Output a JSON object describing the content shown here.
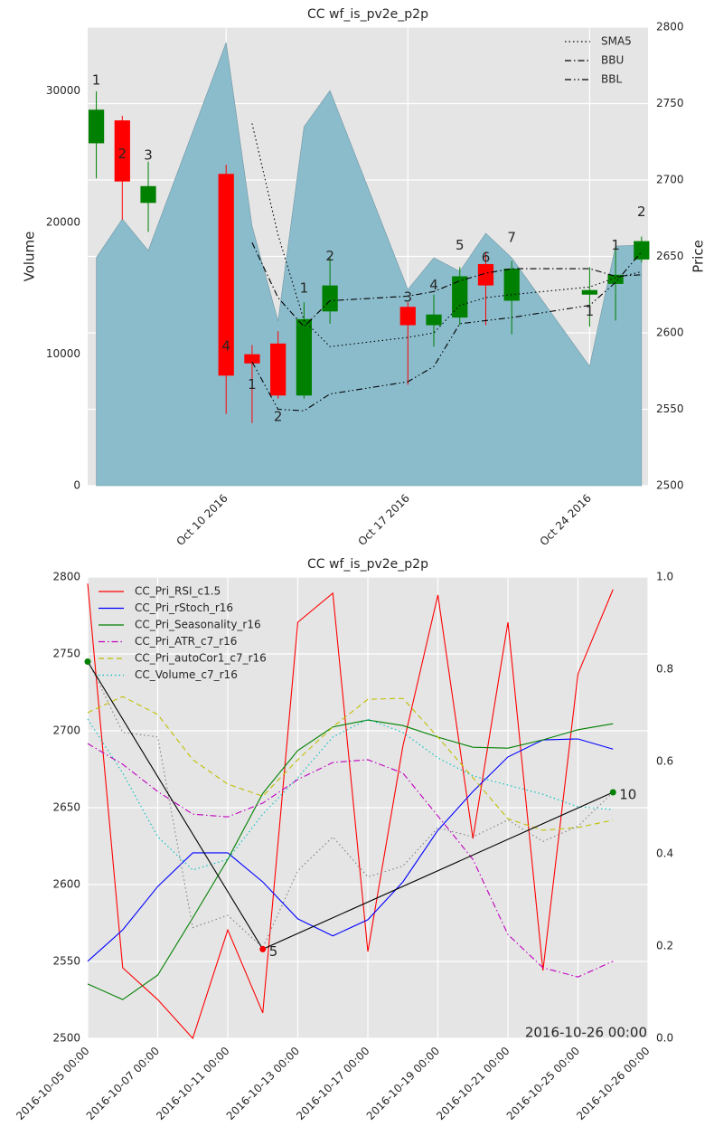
{
  "chart_data": [
    {
      "type": "candlestick",
      "title": "CC wf_is_pv2e_p2p",
      "ylabel": "Volume",
      "y2label": "Price",
      "x": [
        "2016-10-05",
        "2016-10-06",
        "2016-10-07",
        "2016-10-10",
        "2016-10-11",
        "2016-10-12",
        "2016-10-13",
        "2016-10-14",
        "2016-10-17",
        "2016-10-18",
        "2016-10-19",
        "2016-10-20",
        "2016-10-21",
        "2016-10-24",
        "2016-10-25",
        "2016-10-26"
      ],
      "open": [
        2724,
        2739,
        2685,
        2704,
        2586,
        2593,
        2559,
        2614,
        2617,
        2605,
        2610,
        2645,
        2621,
        2625,
        2632,
        2648
      ],
      "high": [
        2758,
        2742,
        2712,
        2710,
        2592,
        2601,
        2620,
        2649,
        2620,
        2625,
        2643,
        2653,
        2647,
        2643,
        2656,
        2663
      ],
      "low": [
        2701,
        2674,
        2666,
        2547,
        2541,
        2557,
        2557,
        2606,
        2566,
        2591,
        2605,
        2605,
        2599,
        2604,
        2608,
        2646
      ],
      "close": [
        2746,
        2699,
        2696,
        2572,
        2580,
        2559,
        2609,
        2631,
        2605,
        2612,
        2637,
        2631,
        2642,
        2628,
        2638,
        2660
      ],
      "up_color": "#008000",
      "down_color": "#ff0000",
      "volume": {
        "values": [
          17320,
          20270,
          17870,
          33680,
          19720,
          12510,
          27280,
          30030,
          14910,
          17320,
          16290,
          19180,
          17320,
          9070,
          18210,
          18280
        ],
        "color": "#8bbccc"
      },
      "series": [
        {
          "name": "SMA5",
          "color": "#000000",
          "style": "dotted",
          "axis": "y2",
          "values": [
            null,
            null,
            null,
            null,
            2737,
            2664,
            2608,
            2591,
            2597,
            2600,
            2618,
            2623,
            2625,
            2630,
            2636,
            2640
          ]
        },
        {
          "name": "BBU",
          "color": "#000000",
          "style": "dashdot",
          "axis": "y2",
          "values": [
            null,
            null,
            null,
            null,
            2659,
            2623,
            2604,
            2621,
            2624,
            2627,
            2634,
            2639,
            2642,
            2642,
            2637,
            2638
          ]
        },
        {
          "name": "BBL",
          "color": "#000000",
          "style": "dashdotdot",
          "axis": "y2",
          "values": [
            null,
            null,
            null,
            null,
            2581,
            2550,
            2549,
            2560,
            2568,
            2578,
            2606,
            2608,
            2610,
            2618,
            2633,
            2653
          ]
        }
      ],
      "annotations": [
        {
          "text": "1",
          "x": "2016-10-05",
          "y": 2765
        },
        {
          "text": "2",
          "x": "2016-10-06",
          "y": 2717
        },
        {
          "text": "3",
          "x": "2016-10-07",
          "y": 2716
        },
        {
          "text": "4",
          "x": "2016-10-10",
          "y": 2591
        },
        {
          "text": "1",
          "x": "2016-10-11",
          "y": 2566
        },
        {
          "text": "2",
          "x": "2016-10-12",
          "y": 2545
        },
        {
          "text": "1",
          "x": "2016-10-13",
          "y": 2629
        },
        {
          "text": "2",
          "x": "2016-10-14",
          "y": 2650
        },
        {
          "text": "3",
          "x": "2016-10-17",
          "y": 2623
        },
        {
          "text": "4",
          "x": "2016-10-18",
          "y": 2631
        },
        {
          "text": "5",
          "x": "2016-10-19",
          "y": 2657
        },
        {
          "text": "6",
          "x": "2016-10-20",
          "y": 2649
        },
        {
          "text": "7",
          "x": "2016-10-21",
          "y": 2662
        },
        {
          "text": "1",
          "x": "2016-10-24",
          "y": 2614
        },
        {
          "text": "1",
          "x": "2016-10-25",
          "y": 2657
        },
        {
          "text": "2",
          "x": "2016-10-26",
          "y": 2679
        }
      ],
      "annotation_axis": "y2",
      "xlim": [
        "2016-10-04T16:00",
        "2016-10-26T06:00"
      ],
      "xticks": [
        {
          "value": "2016-10-10",
          "label": "Oct 10 2016"
        },
        {
          "value": "2016-10-17",
          "label": "Oct 17 2016"
        },
        {
          "value": "2016-10-24",
          "label": "Oct 24 2016"
        }
      ],
      "ylim": [
        0,
        34850
      ],
      "yticks": [
        0,
        10000,
        20000,
        30000
      ],
      "y2lim": [
        2500,
        2800
      ],
      "y2ticks": [
        2500,
        2550,
        2600,
        2650,
        2700,
        2750,
        2800
      ],
      "grid": "y2",
      "legend": "upper right"
    },
    {
      "type": "line",
      "title": "CC wf_is_pv2e_p2p",
      "x": [
        0,
        1,
        2,
        3,
        4,
        5,
        6,
        7,
        8,
        9,
        10,
        11,
        12,
        13,
        14,
        15
      ],
      "series": [
        {
          "name": "CC_Pri_RSI_c1.5",
          "color": "#ff0000",
          "style": "solid",
          "axis": "y2",
          "values": [
            0.986,
            0.153,
            0.084,
            0.0,
            0.235,
            0.055,
            0.902,
            0.965,
            0.188,
            0.633,
            0.961,
            0.433,
            0.902,
            0.147,
            0.79,
            0.973
          ]
        },
        {
          "name": "CC_Pri_rStoch_r16",
          "color": "#0000ff",
          "style": "solid",
          "axis": "y2",
          "values": [
            0.167,
            0.235,
            0.329,
            0.402,
            0.402,
            0.339,
            0.259,
            0.222,
            0.257,
            0.339,
            0.451,
            0.535,
            0.61,
            0.647,
            0.649,
            0.627
          ]
        },
        {
          "name": "CC_Pri_Seasonality_r16",
          "color": "#008000",
          "style": "solid",
          "axis": "y2",
          "values": [
            0.118,
            0.084,
            0.137,
            0.261,
            0.388,
            0.531,
            0.624,
            0.675,
            0.69,
            0.678,
            0.653,
            0.631,
            0.629,
            0.647,
            0.669,
            0.682
          ]
        },
        {
          "name": "CC_Pri_ATR_c7_r16",
          "color": "#bf00bf",
          "style": "dashdot",
          "axis": "y2",
          "values": [
            0.639,
            0.594,
            0.535,
            0.486,
            0.48,
            0.51,
            0.561,
            0.598,
            0.604,
            0.575,
            0.482,
            0.388,
            0.225,
            0.153,
            0.133,
            0.167
          ]
        },
        {
          "name": "CC_Pri_autoCor1_c7_r16",
          "color": "#bfbf00",
          "style": "dashed",
          "axis": "y2",
          "values": [
            0.706,
            0.741,
            0.702,
            0.604,
            0.551,
            0.525,
            0.604,
            0.675,
            0.735,
            0.737,
            0.653,
            0.565,
            0.476,
            0.451,
            0.457,
            0.473
          ]
        },
        {
          "name": "CC_Volume_c7_r16",
          "color": "#00bfbf",
          "style": "dotted",
          "axis": "y2",
          "values": [
            0.692,
            0.575,
            0.437,
            0.365,
            0.388,
            0.486,
            0.565,
            0.653,
            0.692,
            0.663,
            0.608,
            0.569,
            0.549,
            0.529,
            0.502,
            0.496
          ]
        },
        {
          "color": "#808080",
          "style": "dotted",
          "axis": "y",
          "values": [
            2746,
            2699,
            2696,
            2572,
            2580,
            2559,
            2609,
            2631,
            2605,
            2612,
            2637,
            2631,
            2642,
            2628,
            2638,
            2660
          ]
        },
        {
          "color": "#000000",
          "style": "solid",
          "axis": "y",
          "x": [
            0,
            5,
            15
          ],
          "values": [
            2745,
            2558,
            2660
          ],
          "marker_colors": [
            "#008000",
            "#ff0000",
            "#008000"
          ]
        }
      ],
      "annotations": [
        {
          "text": "5",
          "x": 5,
          "y": 2558
        },
        {
          "text": "10",
          "x": 15,
          "y": 2660
        }
      ],
      "annotation_axis": "y",
      "corner_text": "2016-10-26 00:00",
      "xlim": [
        0,
        16
      ],
      "xticks": [
        {
          "value": 0,
          "label": "2016-10-05 00:00"
        },
        {
          "value": 2,
          "label": "2016-10-07 00:00"
        },
        {
          "value": 4,
          "label": "2016-10-11 00:00"
        },
        {
          "value": 6,
          "label": "2016-10-13 00:00"
        },
        {
          "value": 8,
          "label": "2016-10-17 00:00"
        },
        {
          "value": 10,
          "label": "2016-10-19 00:00"
        },
        {
          "value": 12,
          "label": "2016-10-21 00:00"
        },
        {
          "value": 14,
          "label": "2016-10-25 00:00"
        },
        {
          "value": 16,
          "label": "2016-10-26 00:00"
        }
      ],
      "ylim": [
        2500,
        2800
      ],
      "yticks": [
        2500,
        2550,
        2600,
        2650,
        2700,
        2750,
        2800
      ],
      "y2lim": [
        0,
        1
      ],
      "y2ticks": [
        {
          "value": 0,
          "label": "0.0"
        },
        0.2,
        0.4,
        0.6,
        0.8,
        {
          "value": 1,
          "label": "1.0"
        }
      ],
      "grid": "y",
      "legend": "upper left"
    }
  ]
}
